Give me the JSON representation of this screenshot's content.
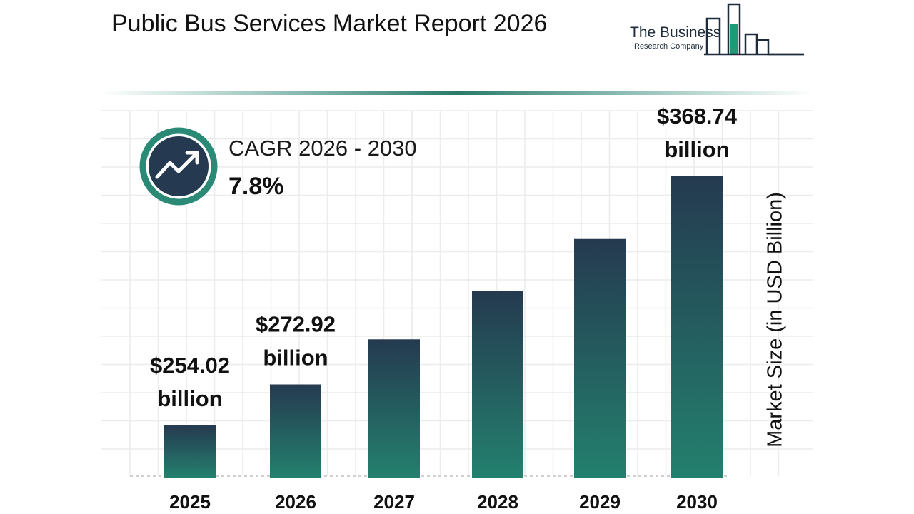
{
  "header": {
    "title": "Public Bus Services Market Report 2026"
  },
  "logo": {
    "line1": "The Business",
    "line2": "Research Company"
  },
  "cagr": {
    "label": "CAGR 2026 - 2030",
    "value": "7.8%",
    "icon": "trend-up-icon"
  },
  "colors": {
    "bar_top": "#253a50",
    "bar_bottom": "#23806e",
    "accent": "#2a8a76",
    "dark": "#253a50"
  },
  "chart_data": {
    "type": "bar",
    "categories": [
      "2025",
      "2026",
      "2027",
      "2028",
      "2029",
      "2030"
    ],
    "values": [
      254.02,
      272.92,
      293.7,
      315.9,
      339.9,
      368.74
    ],
    "data_labels": [
      "$254.02 billion",
      "$272.92 billion",
      "",
      "",
      "",
      "$368.74 billion"
    ],
    "title": "Public Bus Services Market Report 2026",
    "xlabel": "",
    "ylabel": "Market Size (in USD Billion)",
    "grid": true,
    "legend": "none"
  }
}
